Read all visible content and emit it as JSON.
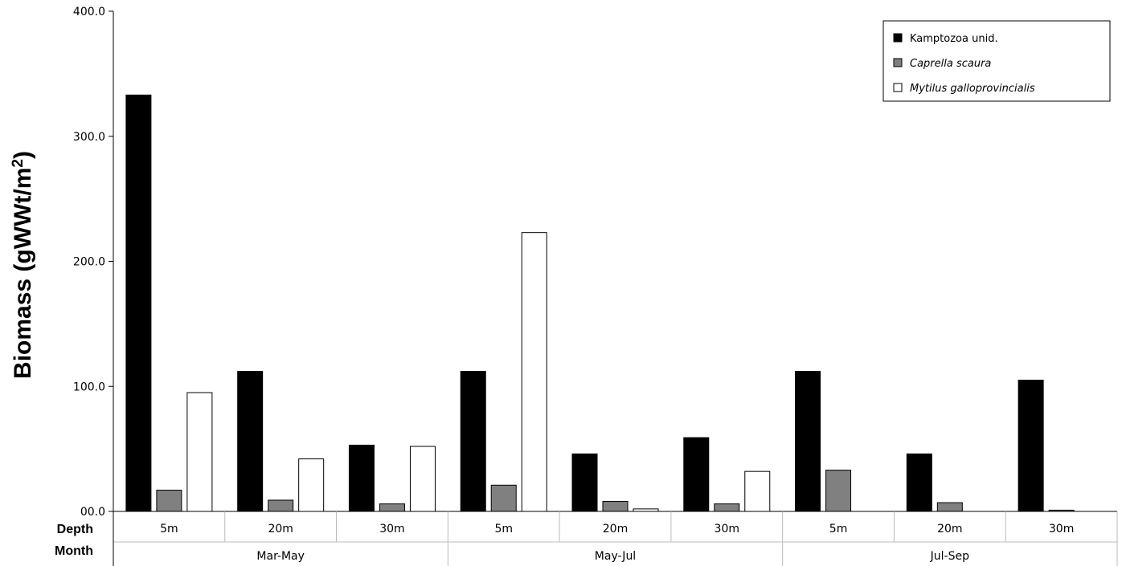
{
  "chart_data": {
    "type": "bar",
    "ylabel": "Biomass (gWWt/m",
    "ylabel_sup": "2",
    "ylabel_close": ")",
    "ylim": [
      0,
      400
    ],
    "yticks": [
      "00.0",
      "100.0",
      "200.0",
      "300.0",
      "400.0"
    ],
    "ytick_values": [
      0,
      100,
      200,
      300,
      400
    ],
    "row_labels": {
      "depth": "Depth",
      "month": "Month"
    },
    "groups": [
      "Mar-May",
      "May-Jul",
      "Jul-Sep"
    ],
    "categories": [
      "5m",
      "20m",
      "30m",
      "5m",
      "20m",
      "30m",
      "5m",
      "20m",
      "30m"
    ],
    "series": [
      {
        "name": "Kamptozoa unid.",
        "color": "#000000",
        "italic": false,
        "values": [
          333,
          112,
          53,
          112,
          46,
          59,
          112,
          46,
          105
        ]
      },
      {
        "name": "Caprella scaura",
        "color": "#808080",
        "italic": true,
        "values": [
          17,
          9,
          6,
          21,
          8,
          6,
          33,
          7,
          1
        ]
      },
      {
        "name": "Mytilus galloprovincialis",
        "color": "#ffffff",
        "italic": true,
        "values": [
          95,
          42,
          52,
          223,
          2,
          32,
          0,
          0,
          0
        ]
      }
    ],
    "legend": "top-right",
    "grid": false
  }
}
